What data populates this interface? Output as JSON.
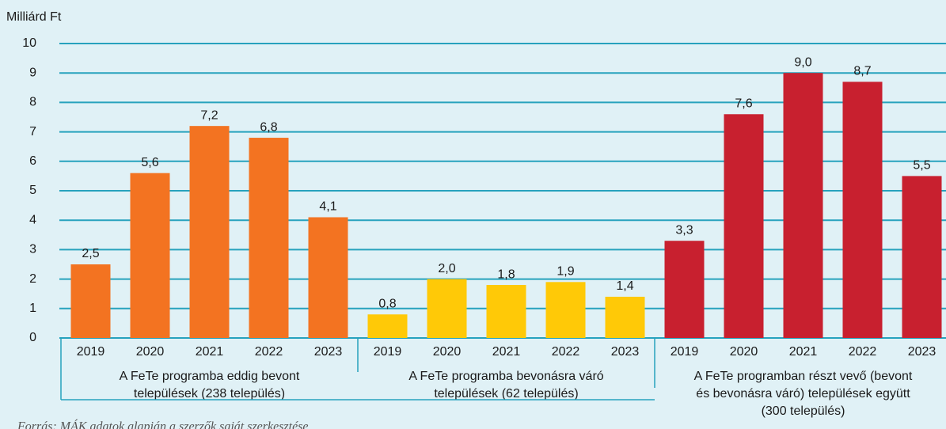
{
  "chart_data": {
    "type": "bar",
    "y_label": "Milliárd Ft",
    "ylim": [
      0,
      10
    ],
    "yticks": [
      0,
      1,
      2,
      3,
      4,
      5,
      6,
      7,
      8,
      9,
      10
    ],
    "grid": true,
    "groups": [
      {
        "name": [
          "A FeTe programba eddig bevont",
          "települések (238 település)"
        ],
        "color": "#f37321",
        "categories": [
          "2019",
          "2020",
          "2021",
          "2022",
          "2023"
        ],
        "values": [
          2.5,
          5.6,
          7.2,
          6.8,
          4.1
        ],
        "value_labels": [
          "2,5",
          "5,6",
          "7,2",
          "6,8",
          "4,1"
        ]
      },
      {
        "name": [
          "A FeTe programba bevonásra váró",
          "települések  (62 település)"
        ],
        "color": "#ffc907",
        "categories": [
          "2019",
          "2020",
          "2021",
          "2022",
          "2023"
        ],
        "values": [
          0.8,
          2.0,
          1.8,
          1.9,
          1.4
        ],
        "value_labels": [
          "0,8",
          "2,0",
          "1,8",
          "1,9",
          "1,4"
        ]
      },
      {
        "name": [
          "A FeTe programban részt vevő (bevont",
          "és bevonásra váró) települések együtt",
          "(300 település)"
        ],
        "color": "#c8202f",
        "categories": [
          "2019",
          "2020",
          "2021",
          "2022",
          "2023"
        ],
        "values": [
          3.3,
          7.6,
          9.0,
          8.7,
          5.5
        ],
        "value_labels": [
          "3,3",
          "7,6",
          "9,0",
          "8,7",
          "5,5"
        ]
      }
    ],
    "source": "Forrás: MÁK adatok alapján a szerzők saját szerkesztése"
  }
}
